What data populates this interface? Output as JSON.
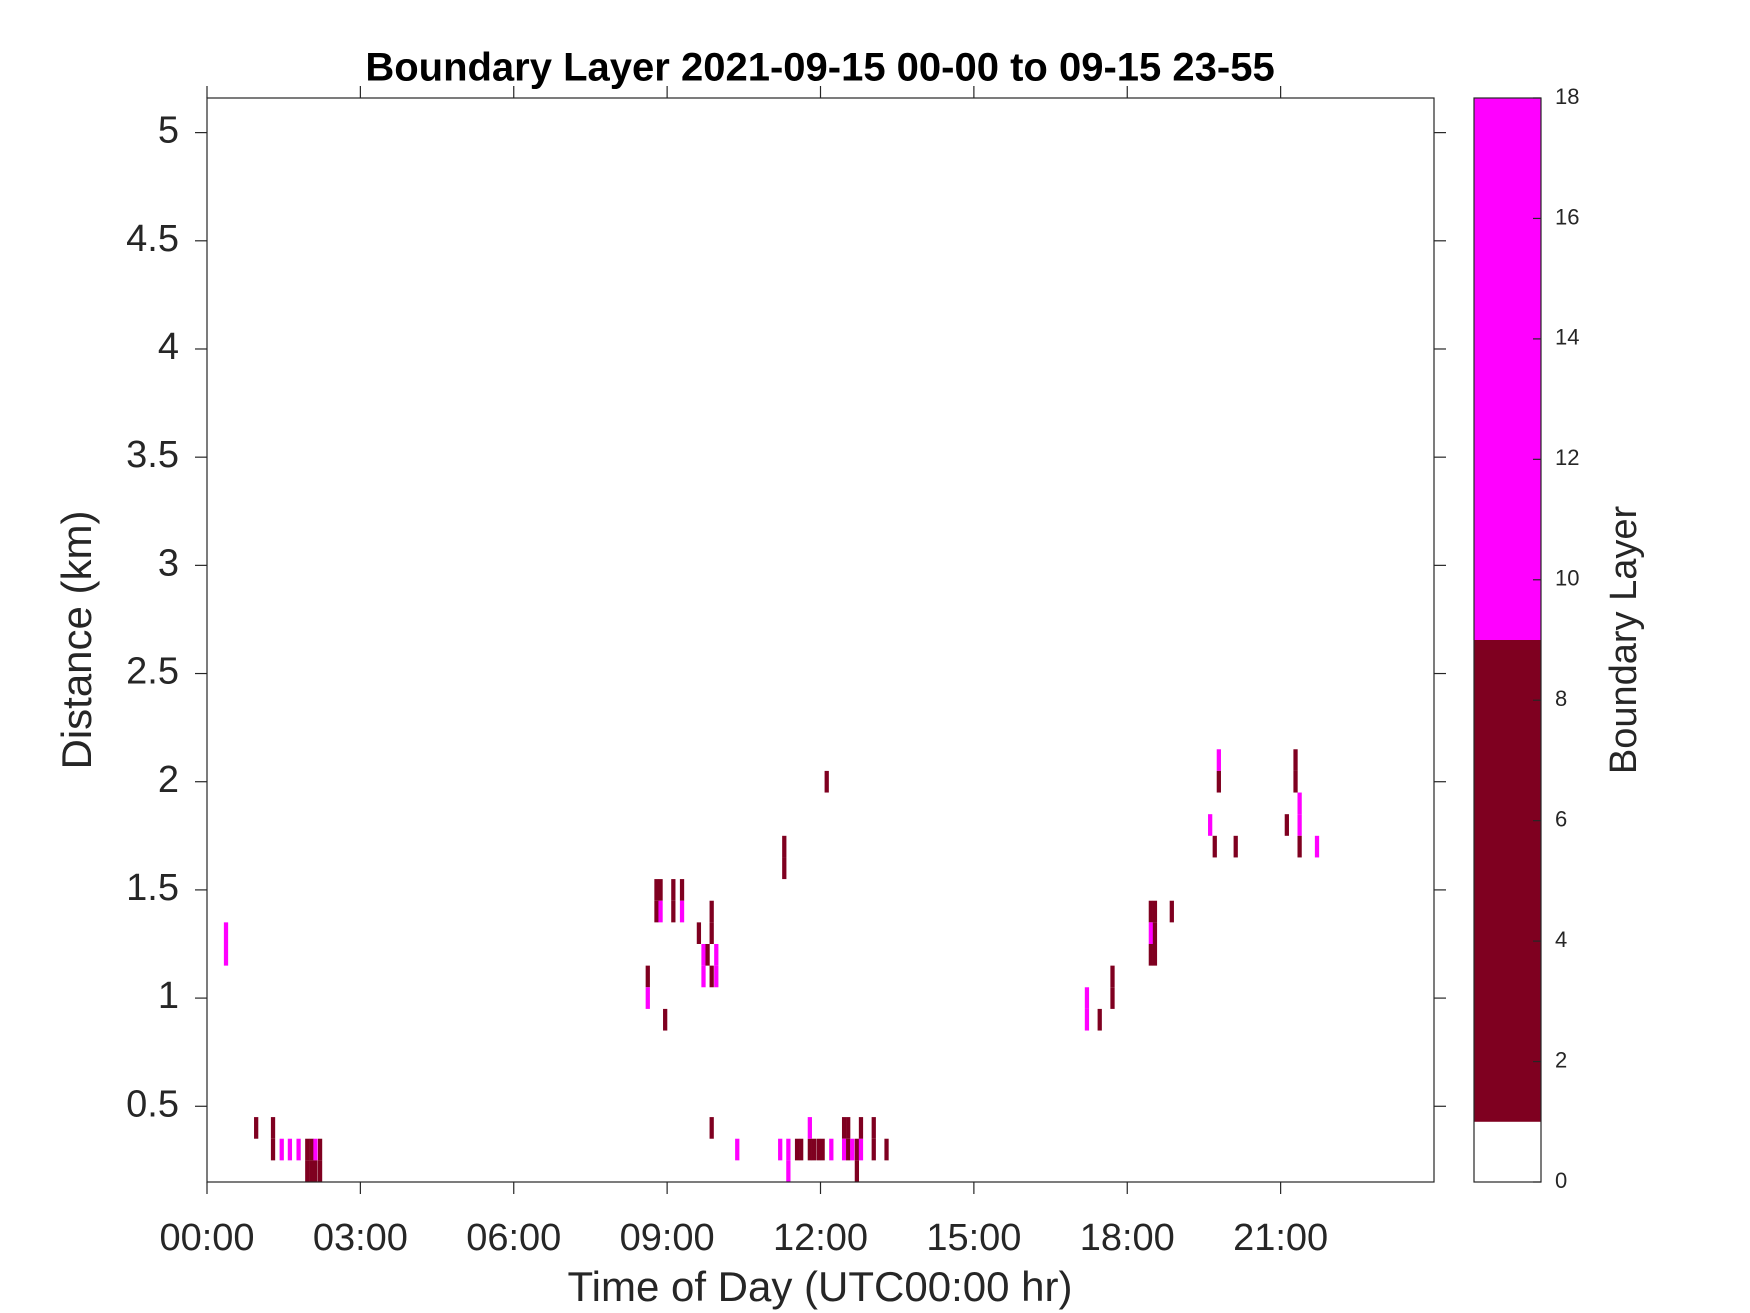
{
  "chart_data": {
    "type": "heatmap",
    "title": "Boundary Layer 2021-09-15 00-00 to 09-15 23-55",
    "x_label": "Time of Day (UTC00:00 hr)",
    "y_label": "Distance (km)",
    "xlim": [
      0,
      24
    ],
    "xticks": [
      {
        "value": 0,
        "label": "00:00"
      },
      {
        "value": 3,
        "label": "03:00"
      },
      {
        "value": 6,
        "label": "06:00"
      },
      {
        "value": 9,
        "label": "09:00"
      },
      {
        "value": 12,
        "label": "12:00"
      },
      {
        "value": 15,
        "label": "15:00"
      },
      {
        "value": 18,
        "label": "18:00"
      },
      {
        "value": 21,
        "label": "21:00"
      }
    ],
    "ylim": [
      0.15,
      5.16
    ],
    "yticks": [
      0.5,
      1,
      1.5,
      2,
      2.5,
      3,
      3.5,
      4,
      4.5,
      5
    ],
    "cells": {
      "x": [
        0.33,
        0.33,
        0.92,
        1.25,
        1.25,
        1.42,
        1.58,
        1.75,
        1.92,
        1.92,
        2.0,
        2.0,
        2.08,
        2.08,
        2.17,
        2.17,
        8.58,
        8.58,
        8.75,
        8.75,
        8.83,
        8.83,
        8.92,
        9.08,
        9.08,
        9.25,
        9.25,
        9.58,
        9.67,
        9.67,
        9.75,
        9.83,
        9.83,
        9.83,
        9.83,
        9.92,
        9.92,
        10.33,
        11.17,
        11.25,
        11.25,
        11.33,
        11.33,
        11.5,
        11.58,
        11.75,
        11.75,
        11.83,
        11.92,
        12.0,
        12.08,
        12.17,
        12.42,
        12.42,
        12.5,
        12.5,
        12.58,
        12.67,
        12.67,
        12.75,
        12.75,
        13.0,
        13.0,
        13.25,
        17.17,
        17.17,
        17.42,
        17.67,
        17.67,
        18.42,
        18.42,
        18.42,
        18.5,
        18.5,
        18.5,
        18.83,
        19.58,
        19.67,
        19.75,
        19.75,
        20.08,
        21.08,
        21.25,
        21.25,
        21.33,
        21.33,
        21.33,
        21.67
      ],
      "y": [
        1.3,
        1.2,
        0.4,
        0.4,
        0.3,
        0.3,
        0.3,
        0.3,
        0.3,
        0.2,
        0.3,
        0.2,
        0.3,
        0.2,
        0.3,
        0.2,
        1.1,
        1.0,
        1.5,
        1.4,
        1.5,
        1.4,
        0.9,
        1.5,
        1.4,
        1.5,
        1.4,
        1.3,
        1.2,
        1.1,
        1.2,
        1.4,
        1.3,
        1.1,
        0.4,
        1.2,
        1.1,
        0.3,
        0.3,
        1.7,
        1.6,
        0.3,
        0.2,
        0.3,
        0.3,
        0.3,
        0.4,
        0.3,
        0.3,
        0.3,
        2.0,
        0.3,
        0.4,
        0.3,
        0.4,
        0.3,
        0.3,
        0.3,
        0.2,
        0.3,
        0.4,
        0.4,
        0.3,
        0.3,
        1.0,
        0.9,
        0.9,
        1.1,
        1.0,
        1.4,
        1.3,
        1.2,
        1.4,
        1.3,
        1.2,
        1.4,
        1.8,
        1.7,
        2.1,
        2.0,
        1.7,
        1.8,
        2.1,
        2.0,
        1.9,
        1.8,
        1.7,
        1.7
      ],
      "values": [
        13,
        13,
        5,
        5,
        5,
        13,
        13,
        13,
        5,
        5,
        5,
        5,
        13,
        5,
        5,
        5,
        5,
        13,
        5,
        5,
        5,
        13,
        5,
        5,
        5,
        5,
        13,
        5,
        13,
        13,
        5,
        5,
        5,
        5,
        5,
        13,
        13,
        13,
        13,
        5,
        5,
        13,
        13,
        5,
        5,
        5,
        13,
        5,
        5,
        5,
        5,
        13,
        5,
        13,
        5,
        5,
        13,
        5,
        5,
        13,
        5,
        5,
        5,
        5,
        13,
        13,
        5,
        5,
        5,
        5,
        13,
        5,
        5,
        5,
        5,
        5,
        13,
        5,
        13,
        5,
        5,
        5,
        5,
        5,
        13,
        13,
        5,
        13
      ]
    },
    "colorbar": {
      "label": "Boundary Layer",
      "lim": [
        0,
        18
      ],
      "ticks": [
        0,
        2,
        4,
        6,
        8,
        10,
        12,
        14,
        16,
        18
      ],
      "bands": [
        {
          "from": 0,
          "to": 1,
          "color": "#ffffff"
        },
        {
          "from": 1,
          "to": 9,
          "color": "#7f0020"
        },
        {
          "from": 9,
          "to": 18,
          "color": "#ff00ff"
        }
      ]
    }
  }
}
